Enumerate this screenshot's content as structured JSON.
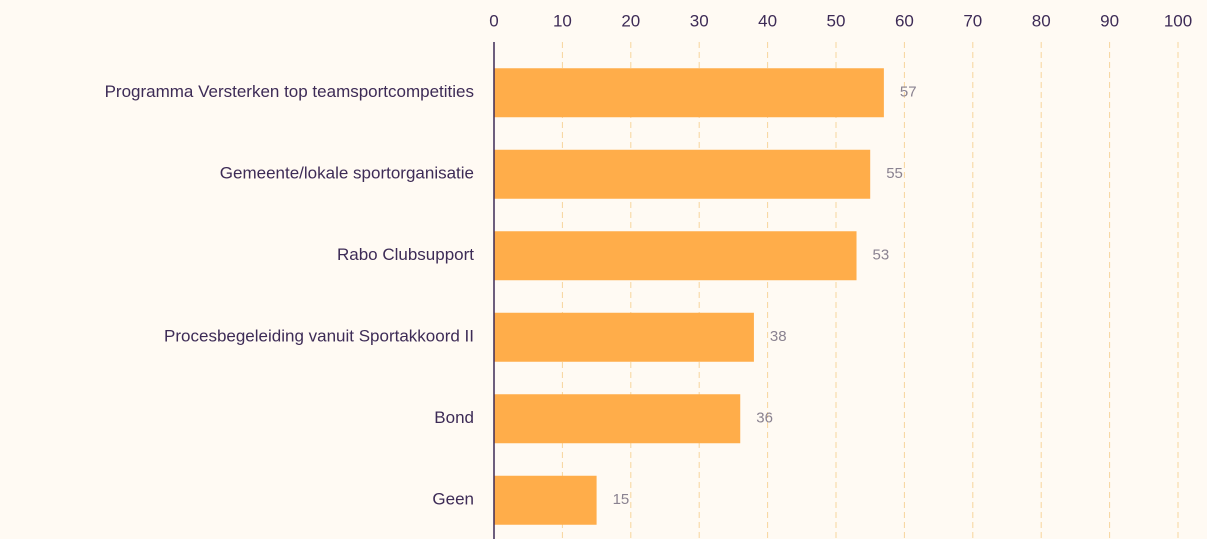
{
  "chart_data": {
    "type": "bar",
    "orientation": "horizontal",
    "categories": [
      "Programma Versterken top teamsportcompetities",
      "Gemeente/lokale sportorganisatie",
      "Rabo Clubsupport",
      "Procesbegeleiding vanuit Sportakkoord II",
      "Bond",
      "Geen"
    ],
    "values": [
      57,
      55,
      53,
      38,
      36,
      15
    ],
    "color": "#ffad4a",
    "xlim": [
      0,
      100
    ],
    "xticks": [
      0,
      10,
      20,
      30,
      40,
      50,
      60,
      70,
      80,
      90,
      100
    ],
    "grid": true
  }
}
